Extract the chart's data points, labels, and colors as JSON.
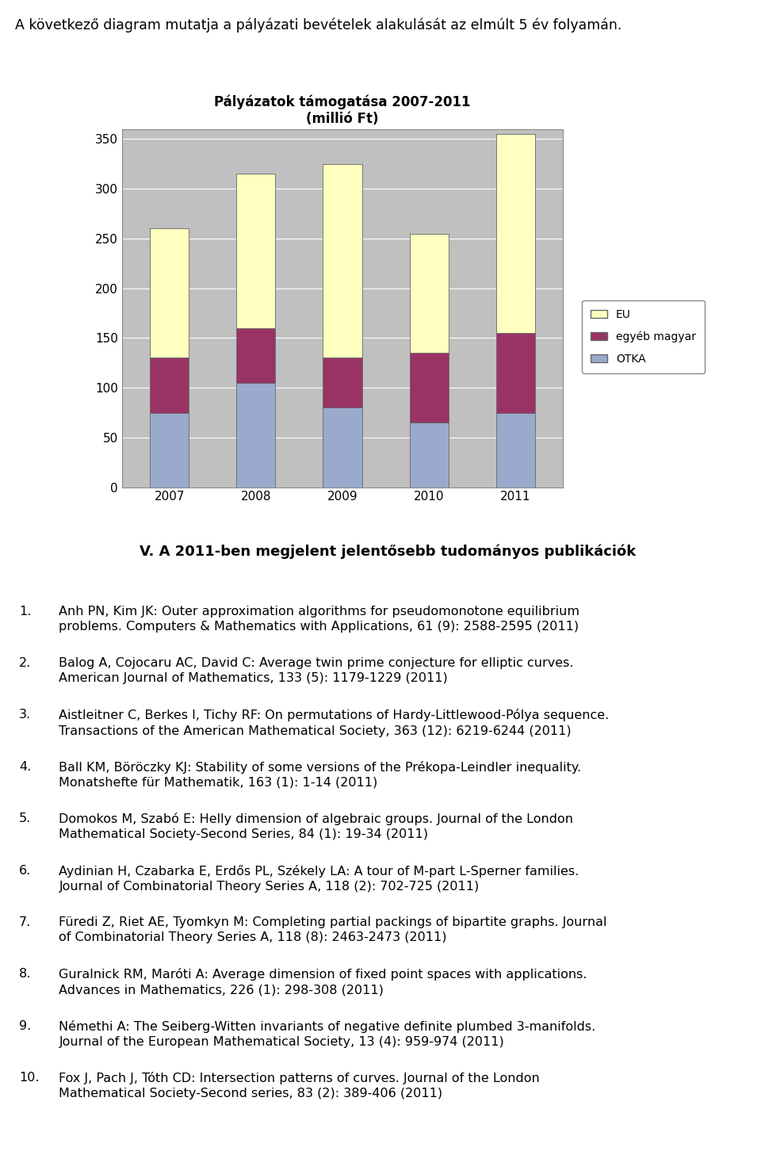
{
  "intro_text": "A következő diagram mutatja a pályázati bevételek alakulását az elmúlt 5 év folyamán.",
  "chart_title": "Pályázatok támogatása 2007-2011\n(millió Ft)",
  "years": [
    "2007",
    "2008",
    "2009",
    "2010",
    "2011"
  ],
  "OTKA": [
    75,
    105,
    80,
    65,
    75
  ],
  "egyeb_magyar": [
    55,
    55,
    50,
    70,
    80
  ],
  "EU": [
    130,
    155,
    195,
    120,
    200
  ],
  "bar_color_EU": "#FFFFC0",
  "bar_color_egyeb": "#993366",
  "bar_color_OTKA": "#99AACC",
  "bar_color_EU_dark": "#CCCC88",
  "bar_color_egyeb_dark": "#660033",
  "bar_color_OTKA_dark": "#6677AA",
  "yticks": [
    0,
    50,
    100,
    150,
    200,
    250,
    300,
    350
  ],
  "ylim": [
    0,
    360
  ],
  "chart_bg": "#C0C0C0",
  "legend_labels": [
    "EU",
    "egyéb magyar",
    "OTKA"
  ],
  "section_title": "V. A 2011-ben megjelent jelentősebb tudományos publikációk",
  "publications": [
    {
      "num": "1.",
      "prefix": "",
      "underline": "Anh PN",
      "suffix": ", Kim JK: Outer approximation algorithms for pseudomonotone equilibrium\nproblems. Computers & Mathematics with Applications, 61 (9): 2588-2595 (2011)"
    },
    {
      "num": "2.",
      "prefix": "",
      "underline": "Balog A",
      "suffix": ", Cojocaru AC, David C: Average twin prime conjecture for elliptic curves.\nAmerican Journal of Mathematics, 133 (5): 1179-1229 (2011)"
    },
    {
      "num": "3.",
      "prefix": "Aistleitner C, ",
      "underline": "Berkes I",
      "suffix": ", Tichy RF: On permutations of Hardy-Littlewood-Pólya sequence.\nTransactions of the American Mathematical Society, 363 (12): 6219-6244 (2011)"
    },
    {
      "num": "4.",
      "prefix": "Ball KM, ",
      "underline": "Böröczky KJ",
      "suffix": ": Stability of some versions of the Prékopa-Leindler inequality.\nMonatshefte für Mathematik, 163 (1): 1-14 (2011)"
    },
    {
      "num": "5.",
      "prefix": "",
      "underline": "",
      "suffix": "Domokos M, Szabó E: Helly dimension of algebraic groups. Journal of the London\nMathematical Society-Second Series, 84 (1): 19-34 (2011)"
    },
    {
      "num": "6.",
      "prefix": "Aydinian H, Czabarka E, ",
      "underline": "Erdős PL",
      "suffix": ", Székely LA: A tour of M-part L-Sperner families.\nJournal of Combinatorial Theory Series A, 118 (2): 702-725 (2011)"
    },
    {
      "num": "7.",
      "prefix": "",
      "underline": "Füredi Z",
      "suffix": ", Riet AE, Tyomkyn M: Completing partial packings of bipartite graphs. Journal\nof Combinatorial Theory Series A, 118 (8): 2463-2473 (2011)"
    },
    {
      "num": "8.",
      "prefix": "Guralnick RM, ",
      "underline": "Maróti A",
      "suffix": ": Average dimension of fixed point spaces with applications.\nAdvances in Mathematics, 226 (1): 298-308 (2011)"
    },
    {
      "num": "9.",
      "prefix": "",
      "underline": "",
      "suffix": "Némethi A: The Seiberg-Witten invariants of negative definite plumbed 3-manifolds.\nJournal of the European Mathematical Society, 13 (4): 959-974 (2011)"
    },
    {
      "num": "10.",
      "prefix": "Fox J, ",
      "underline": "Pach J",
      "suffix": ", Tóth CD: Intersection patterns of curves. Journal of the London\nMathematical Society-Second series, 83 (2): 389-406 (2011)"
    }
  ],
  "bg_color": "#ffffff"
}
